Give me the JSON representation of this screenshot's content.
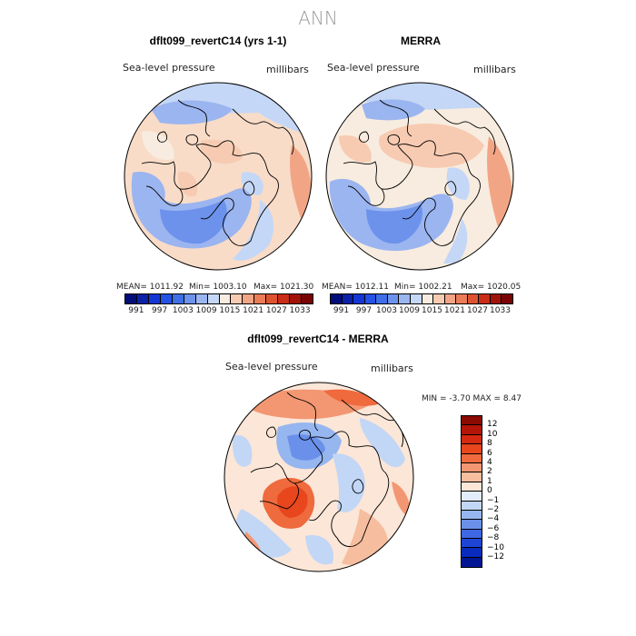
{
  "title": "ANN",
  "panels": {
    "left": {
      "title": "dflt099_revertC14 (yrs 1-1)",
      "var_label": "Sea-level pressure",
      "units_label": "millibars",
      "mean": "MEAN= 1011.92",
      "min": "Min= 1003.10",
      "max": "Max= 1021.30"
    },
    "right": {
      "title": "MERRA",
      "var_label": "Sea-level pressure",
      "units_label": "millibars",
      "mean": "MEAN= 1012.11",
      "min": "Min= 1002.21",
      "max": "Max= 1020.05"
    },
    "diff": {
      "title": "dflt099_revertC14 - MERRA",
      "var_label": "Sea-level pressure",
      "units_label": "millibars",
      "minmax": "MIN =   -3.70 MAX =    8.47"
    }
  },
  "colorbar_abs": {
    "ticks": [
      "991",
      "997",
      "1003",
      "1009",
      "1015",
      "1021",
      "1027",
      "1033"
    ],
    "colors": [
      "#000d7a",
      "#0b21a8",
      "#1436d4",
      "#2452e6",
      "#3f6fe6",
      "#6d92ec",
      "#9bb5f0",
      "#c5d7f6",
      "#f7ecdf",
      "#f7cbb2",
      "#f2a585",
      "#ea7c58",
      "#de532f",
      "#c92c17",
      "#a11208",
      "#7a0303"
    ]
  },
  "colorbar_diff": {
    "levels": [
      "12",
      "10",
      "8",
      "6",
      "4",
      "2",
      "1",
      "0",
      "−1",
      "−2",
      "−4",
      "−6",
      "−8",
      "−10",
      "−12"
    ],
    "colors": [
      "#8b0a02",
      "#b31508",
      "#d52a11",
      "#e8461d",
      "#ef6a3d",
      "#f39772",
      "#f6bd9e",
      "#fbe6d7",
      "#e3ecfa",
      "#c2d6f6",
      "#96b6f0",
      "#6a90ea",
      "#3f67e3",
      "#1f45d6",
      "#0a2bbd",
      "#021694"
    ]
  }
}
